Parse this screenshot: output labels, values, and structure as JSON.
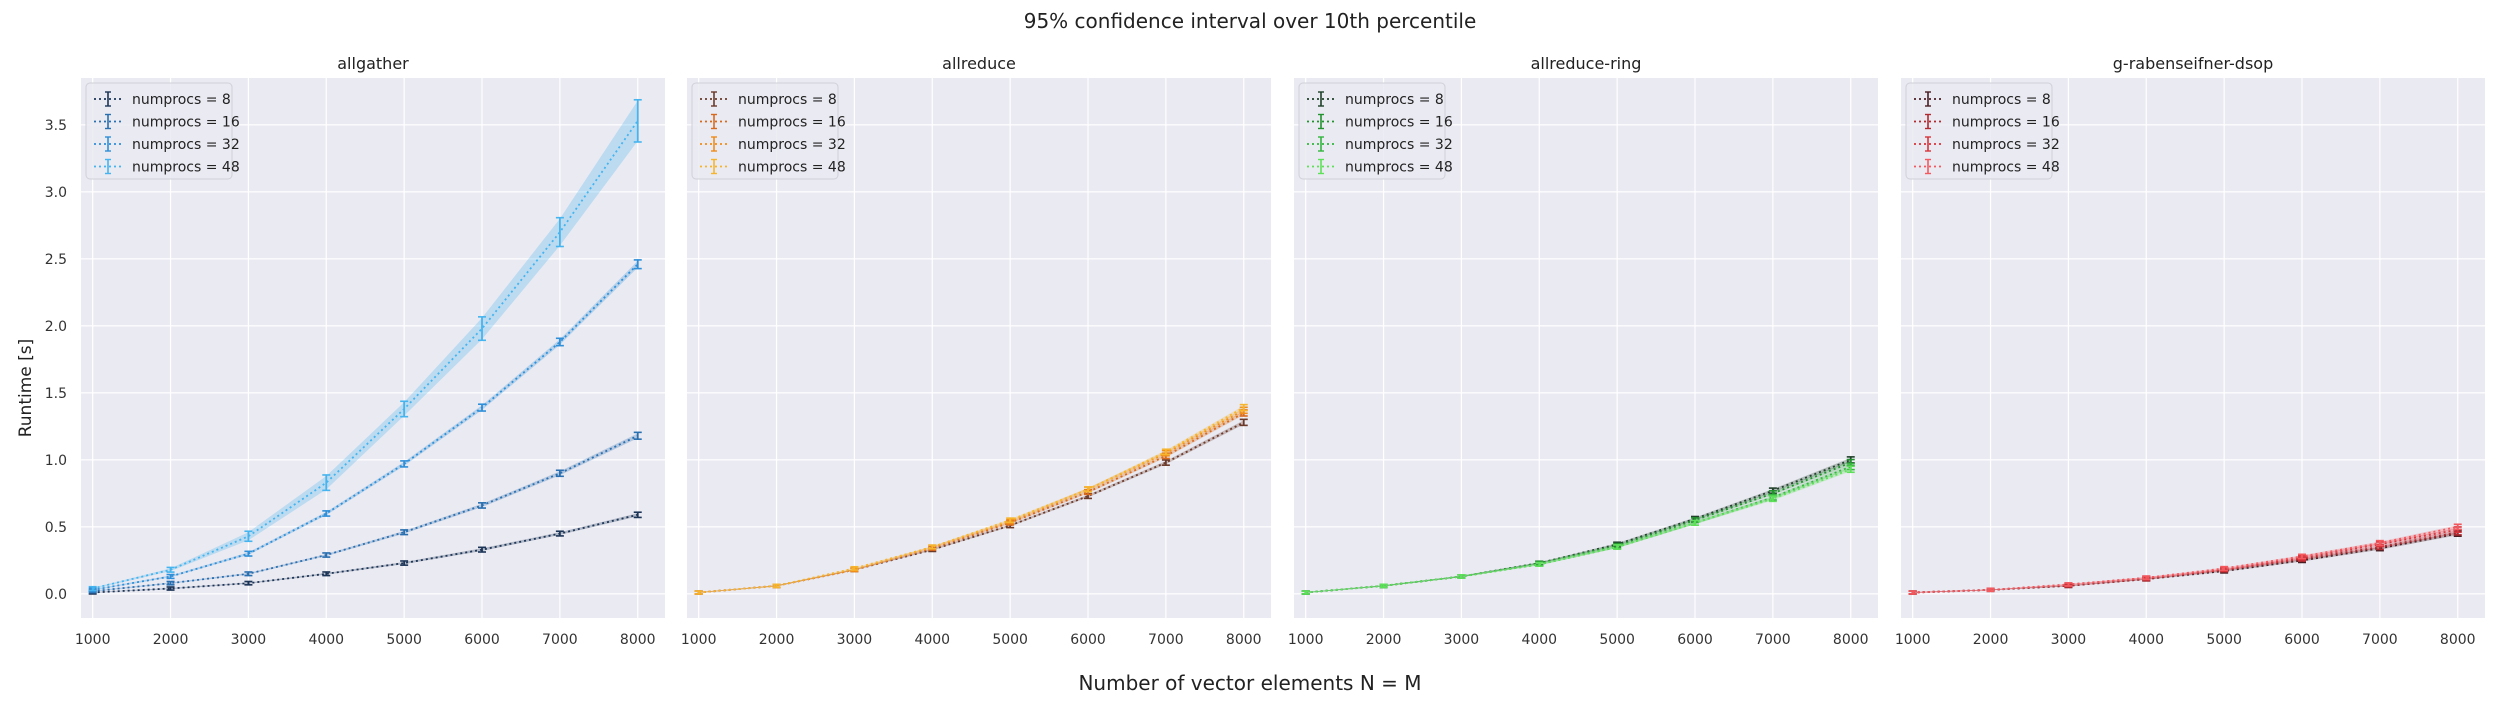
{
  "figure": {
    "title": "95% confidence interval over 10th percentile",
    "xlabel": "Number of vector elements N = M",
    "ylabel": "Runtime [s]"
  },
  "chart_data": [
    {
      "type": "line",
      "title": "allgather",
      "x": [
        1000,
        2000,
        3000,
        4000,
        5000,
        6000,
        7000,
        8000
      ],
      "xlim": [
        850,
        8350
      ],
      "ylim": [
        -0.18,
        3.85
      ],
      "xticks": [
        "1000",
        "2000",
        "3000",
        "4000",
        "5000",
        "6000",
        "7000",
        "8000"
      ],
      "yticks": [
        "0.0",
        "0.5",
        "1.0",
        "1.5",
        "2.0",
        "2.5",
        "3.0",
        "3.5"
      ],
      "grid": true,
      "legend_position": "top-left",
      "series": [
        {
          "name": "numprocs = 8",
          "color": "#1d3557",
          "values": [
            0.01,
            0.04,
            0.08,
            0.15,
            0.23,
            0.33,
            0.45,
            0.59
          ],
          "err": [
            0.003,
            0.004,
            0.005,
            0.006,
            0.008,
            0.01,
            0.01,
            0.012
          ]
        },
        {
          "name": "numprocs = 16",
          "color": "#2a6fb0",
          "values": [
            0.02,
            0.08,
            0.15,
            0.29,
            0.46,
            0.66,
            0.9,
            1.18
          ],
          "err": [
            0.004,
            0.005,
            0.006,
            0.008,
            0.01,
            0.012,
            0.015,
            0.018
          ]
        },
        {
          "name": "numprocs = 32",
          "color": "#2f8fd8",
          "values": [
            0.03,
            0.13,
            0.3,
            0.6,
            0.97,
            1.39,
            1.88,
            2.46
          ],
          "err": [
            0.005,
            0.007,
            0.01,
            0.012,
            0.015,
            0.018,
            0.02,
            0.025
          ]
        },
        {
          "name": "numprocs = 48",
          "color": "#46b4ee",
          "values": [
            0.04,
            0.18,
            0.43,
            0.83,
            1.38,
            1.98,
            2.7,
            3.53
          ],
          "err": [
            0.006,
            0.01,
            0.03,
            0.05,
            0.05,
            0.08,
            0.1,
            0.15
          ]
        }
      ]
    },
    {
      "type": "line",
      "title": "allreduce",
      "x": [
        1000,
        2000,
        3000,
        4000,
        5000,
        6000,
        7000,
        8000
      ],
      "xlim": [
        850,
        8350
      ],
      "ylim": [
        -0.18,
        3.85
      ],
      "xticks": [
        "1000",
        "2000",
        "3000",
        "4000",
        "5000",
        "6000",
        "7000",
        "8000"
      ],
      "yticks": [
        "0.0",
        "0.5",
        "1.0",
        "1.5",
        "2.0",
        "2.5",
        "3.0",
        "3.5"
      ],
      "grid": true,
      "legend_position": "top-left",
      "series": [
        {
          "name": "numprocs = 8",
          "color": "#6b3a2a",
          "values": [
            0.01,
            0.06,
            0.18,
            0.33,
            0.51,
            0.73,
            0.98,
            1.28
          ],
          "err": [
            0.003,
            0.004,
            0.005,
            0.006,
            0.008,
            0.01,
            0.012,
            0.015
          ]
        },
        {
          "name": "numprocs = 16",
          "color": "#d86a1e",
          "values": [
            0.01,
            0.06,
            0.18,
            0.34,
            0.53,
            0.76,
            1.03,
            1.35
          ],
          "err": [
            0.003,
            0.004,
            0.005,
            0.006,
            0.008,
            0.01,
            0.012,
            0.015
          ]
        },
        {
          "name": "numprocs = 32",
          "color": "#f08c1a",
          "values": [
            0.01,
            0.06,
            0.18,
            0.35,
            0.54,
            0.78,
            1.05,
            1.37
          ],
          "err": [
            0.003,
            0.004,
            0.005,
            0.006,
            0.008,
            0.01,
            0.012,
            0.015
          ]
        },
        {
          "name": "numprocs = 48",
          "color": "#f6b52e",
          "values": [
            0.01,
            0.06,
            0.19,
            0.35,
            0.55,
            0.78,
            1.06,
            1.39
          ],
          "err": [
            0.003,
            0.004,
            0.005,
            0.006,
            0.008,
            0.01,
            0.012,
            0.015
          ]
        }
      ]
    },
    {
      "type": "line",
      "title": "allreduce-ring",
      "x": [
        1000,
        2000,
        3000,
        4000,
        5000,
        6000,
        7000,
        8000
      ],
      "xlim": [
        850,
        8350
      ],
      "ylim": [
        -0.18,
        3.85
      ],
      "xticks": [
        "1000",
        "2000",
        "3000",
        "4000",
        "5000",
        "6000",
        "7000",
        "8000"
      ],
      "yticks": [
        "0.0",
        "0.5",
        "1.0",
        "1.5",
        "2.0",
        "2.5",
        "3.0",
        "3.5"
      ],
      "grid": true,
      "legend_position": "top-left",
      "series": [
        {
          "name": "numprocs = 8",
          "color": "#20412a",
          "values": [
            0.01,
            0.06,
            0.13,
            0.23,
            0.37,
            0.56,
            0.77,
            1.0
          ],
          "err": [
            0.003,
            0.004,
            0.005,
            0.006,
            0.008,
            0.01,
            0.012,
            0.015
          ]
        },
        {
          "name": "numprocs = 16",
          "color": "#23922f",
          "values": [
            0.01,
            0.06,
            0.13,
            0.23,
            0.36,
            0.55,
            0.75,
            0.98
          ],
          "err": [
            0.003,
            0.004,
            0.005,
            0.006,
            0.008,
            0.01,
            0.012,
            0.015
          ]
        },
        {
          "name": "numprocs = 32",
          "color": "#34b53e",
          "values": [
            0.01,
            0.06,
            0.13,
            0.22,
            0.35,
            0.53,
            0.72,
            0.95
          ],
          "err": [
            0.003,
            0.004,
            0.005,
            0.006,
            0.008,
            0.01,
            0.012,
            0.015
          ]
        },
        {
          "name": "numprocs = 48",
          "color": "#5fe05a",
          "values": [
            0.01,
            0.06,
            0.13,
            0.22,
            0.35,
            0.53,
            0.71,
            0.93
          ],
          "err": [
            0.003,
            0.004,
            0.005,
            0.006,
            0.008,
            0.01,
            0.012,
            0.015
          ]
        }
      ]
    },
    {
      "type": "line",
      "title": "g-rabenseifner-dsop",
      "x": [
        1000,
        2000,
        3000,
        4000,
        5000,
        6000,
        7000,
        8000
      ],
      "xlim": [
        850,
        8350
      ],
      "ylim": [
        -0.18,
        3.85
      ],
      "xticks": [
        "1000",
        "2000",
        "3000",
        "4000",
        "5000",
        "6000",
        "7000",
        "8000"
      ],
      "yticks": [
        "0.0",
        "0.5",
        "1.0",
        "1.5",
        "2.0",
        "2.5",
        "3.0",
        "3.5"
      ],
      "grid": true,
      "legend_position": "top-left",
      "series": [
        {
          "name": "numprocs = 8",
          "color": "#4a1f24",
          "values": [
            0.01,
            0.03,
            0.06,
            0.11,
            0.17,
            0.25,
            0.34,
            0.45
          ],
          "err": [
            0.003,
            0.003,
            0.004,
            0.005,
            0.006,
            0.008,
            0.01,
            0.012
          ]
        },
        {
          "name": "numprocs = 16",
          "color": "#b02a30",
          "values": [
            0.01,
            0.03,
            0.06,
            0.11,
            0.18,
            0.26,
            0.35,
            0.46
          ],
          "err": [
            0.003,
            0.003,
            0.004,
            0.005,
            0.006,
            0.008,
            0.01,
            0.012
          ]
        },
        {
          "name": "numprocs = 32",
          "color": "#d9333a",
          "values": [
            0.01,
            0.03,
            0.07,
            0.12,
            0.18,
            0.27,
            0.37,
            0.48
          ],
          "err": [
            0.003,
            0.003,
            0.004,
            0.005,
            0.006,
            0.008,
            0.01,
            0.012
          ]
        },
        {
          "name": "numprocs = 48",
          "color": "#f25a60",
          "values": [
            0.01,
            0.03,
            0.07,
            0.12,
            0.19,
            0.28,
            0.38,
            0.5
          ],
          "err": [
            0.003,
            0.003,
            0.004,
            0.005,
            0.006,
            0.008,
            0.01,
            0.012
          ]
        }
      ]
    }
  ]
}
